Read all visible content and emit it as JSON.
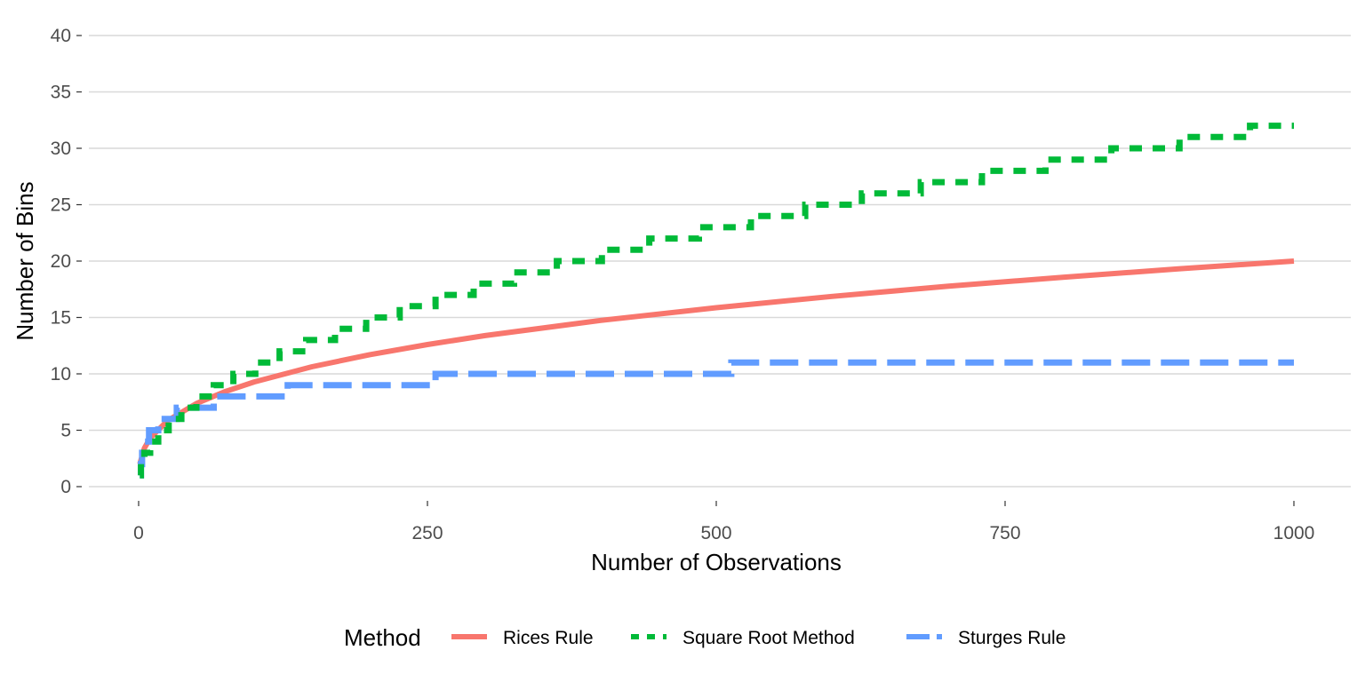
{
  "chart_data": {
    "type": "line",
    "title": "",
    "xlabel": "Number of Observations",
    "ylabel": "Number of Bins",
    "xlim": [
      -20,
      1020
    ],
    "ylim": [
      -1.5,
      41.5
    ],
    "x_ticks": [
      0,
      250,
      500,
      750,
      1000
    ],
    "y_ticks": [
      0,
      5,
      10,
      15,
      20,
      25,
      30,
      35,
      40
    ],
    "grid": "horizontal",
    "legend": {
      "title": "Method",
      "position": "bottom"
    },
    "series": [
      {
        "name": "Rices Rule",
        "color": "#F8766D",
        "linetype": "solid",
        "rule": "2 * n^(1/3)",
        "x": [
          1,
          5,
          10,
          25,
          50,
          75,
          100,
          150,
          200,
          250,
          300,
          400,
          500,
          600,
          700,
          800,
          900,
          1000
        ],
        "y": [
          2.0,
          3.42,
          4.31,
          5.85,
          7.37,
          8.43,
          9.28,
          10.63,
          11.7,
          12.6,
          13.39,
          14.74,
          15.87,
          16.87,
          17.76,
          18.57,
          19.31,
          20.0
        ]
      },
      {
        "name": "Square Root Method",
        "color": "#00BA38",
        "linetype": "dashed",
        "rule": "ceiling(sqrt(n))",
        "x_range": [
          1,
          1000
        ],
        "y_at_1000": 32
      },
      {
        "name": "Sturges Rule",
        "color": "#619CFF",
        "linetype": "longdash",
        "rule": "ceiling(log2(n)) + 1",
        "x_range": [
          1,
          1000
        ],
        "y_at_1000": 11
      }
    ]
  }
}
